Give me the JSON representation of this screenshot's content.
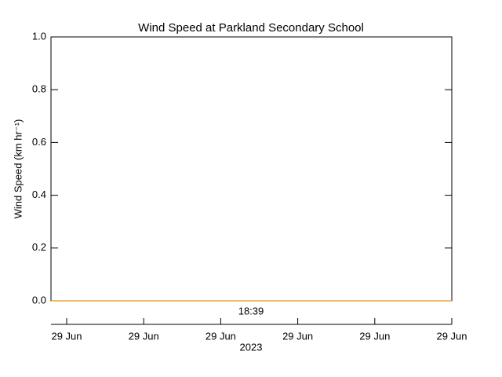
{
  "chart_data": {
    "type": "line",
    "title": "Wind Speed at Parkland Secondary School",
    "ylabel": "Wind Speed (km hr⁻¹)",
    "ylim": [
      0,
      1
    ],
    "yticks": [
      {
        "value": 0,
        "label": "0.0"
      },
      0.2,
      0.4,
      0.6,
      0.8,
      {
        "value": 1,
        "label": "1.0"
      }
    ],
    "series": [
      {
        "color": "#e69500",
        "values": [
          0,
          0
        ]
      }
    ],
    "annotation": "18:39",
    "date_ticks": [
      "29 Jun",
      "29 Jun",
      "29 Jun",
      "29 Jun",
      "29 Jun",
      "29 Jun"
    ],
    "year": "2023"
  }
}
